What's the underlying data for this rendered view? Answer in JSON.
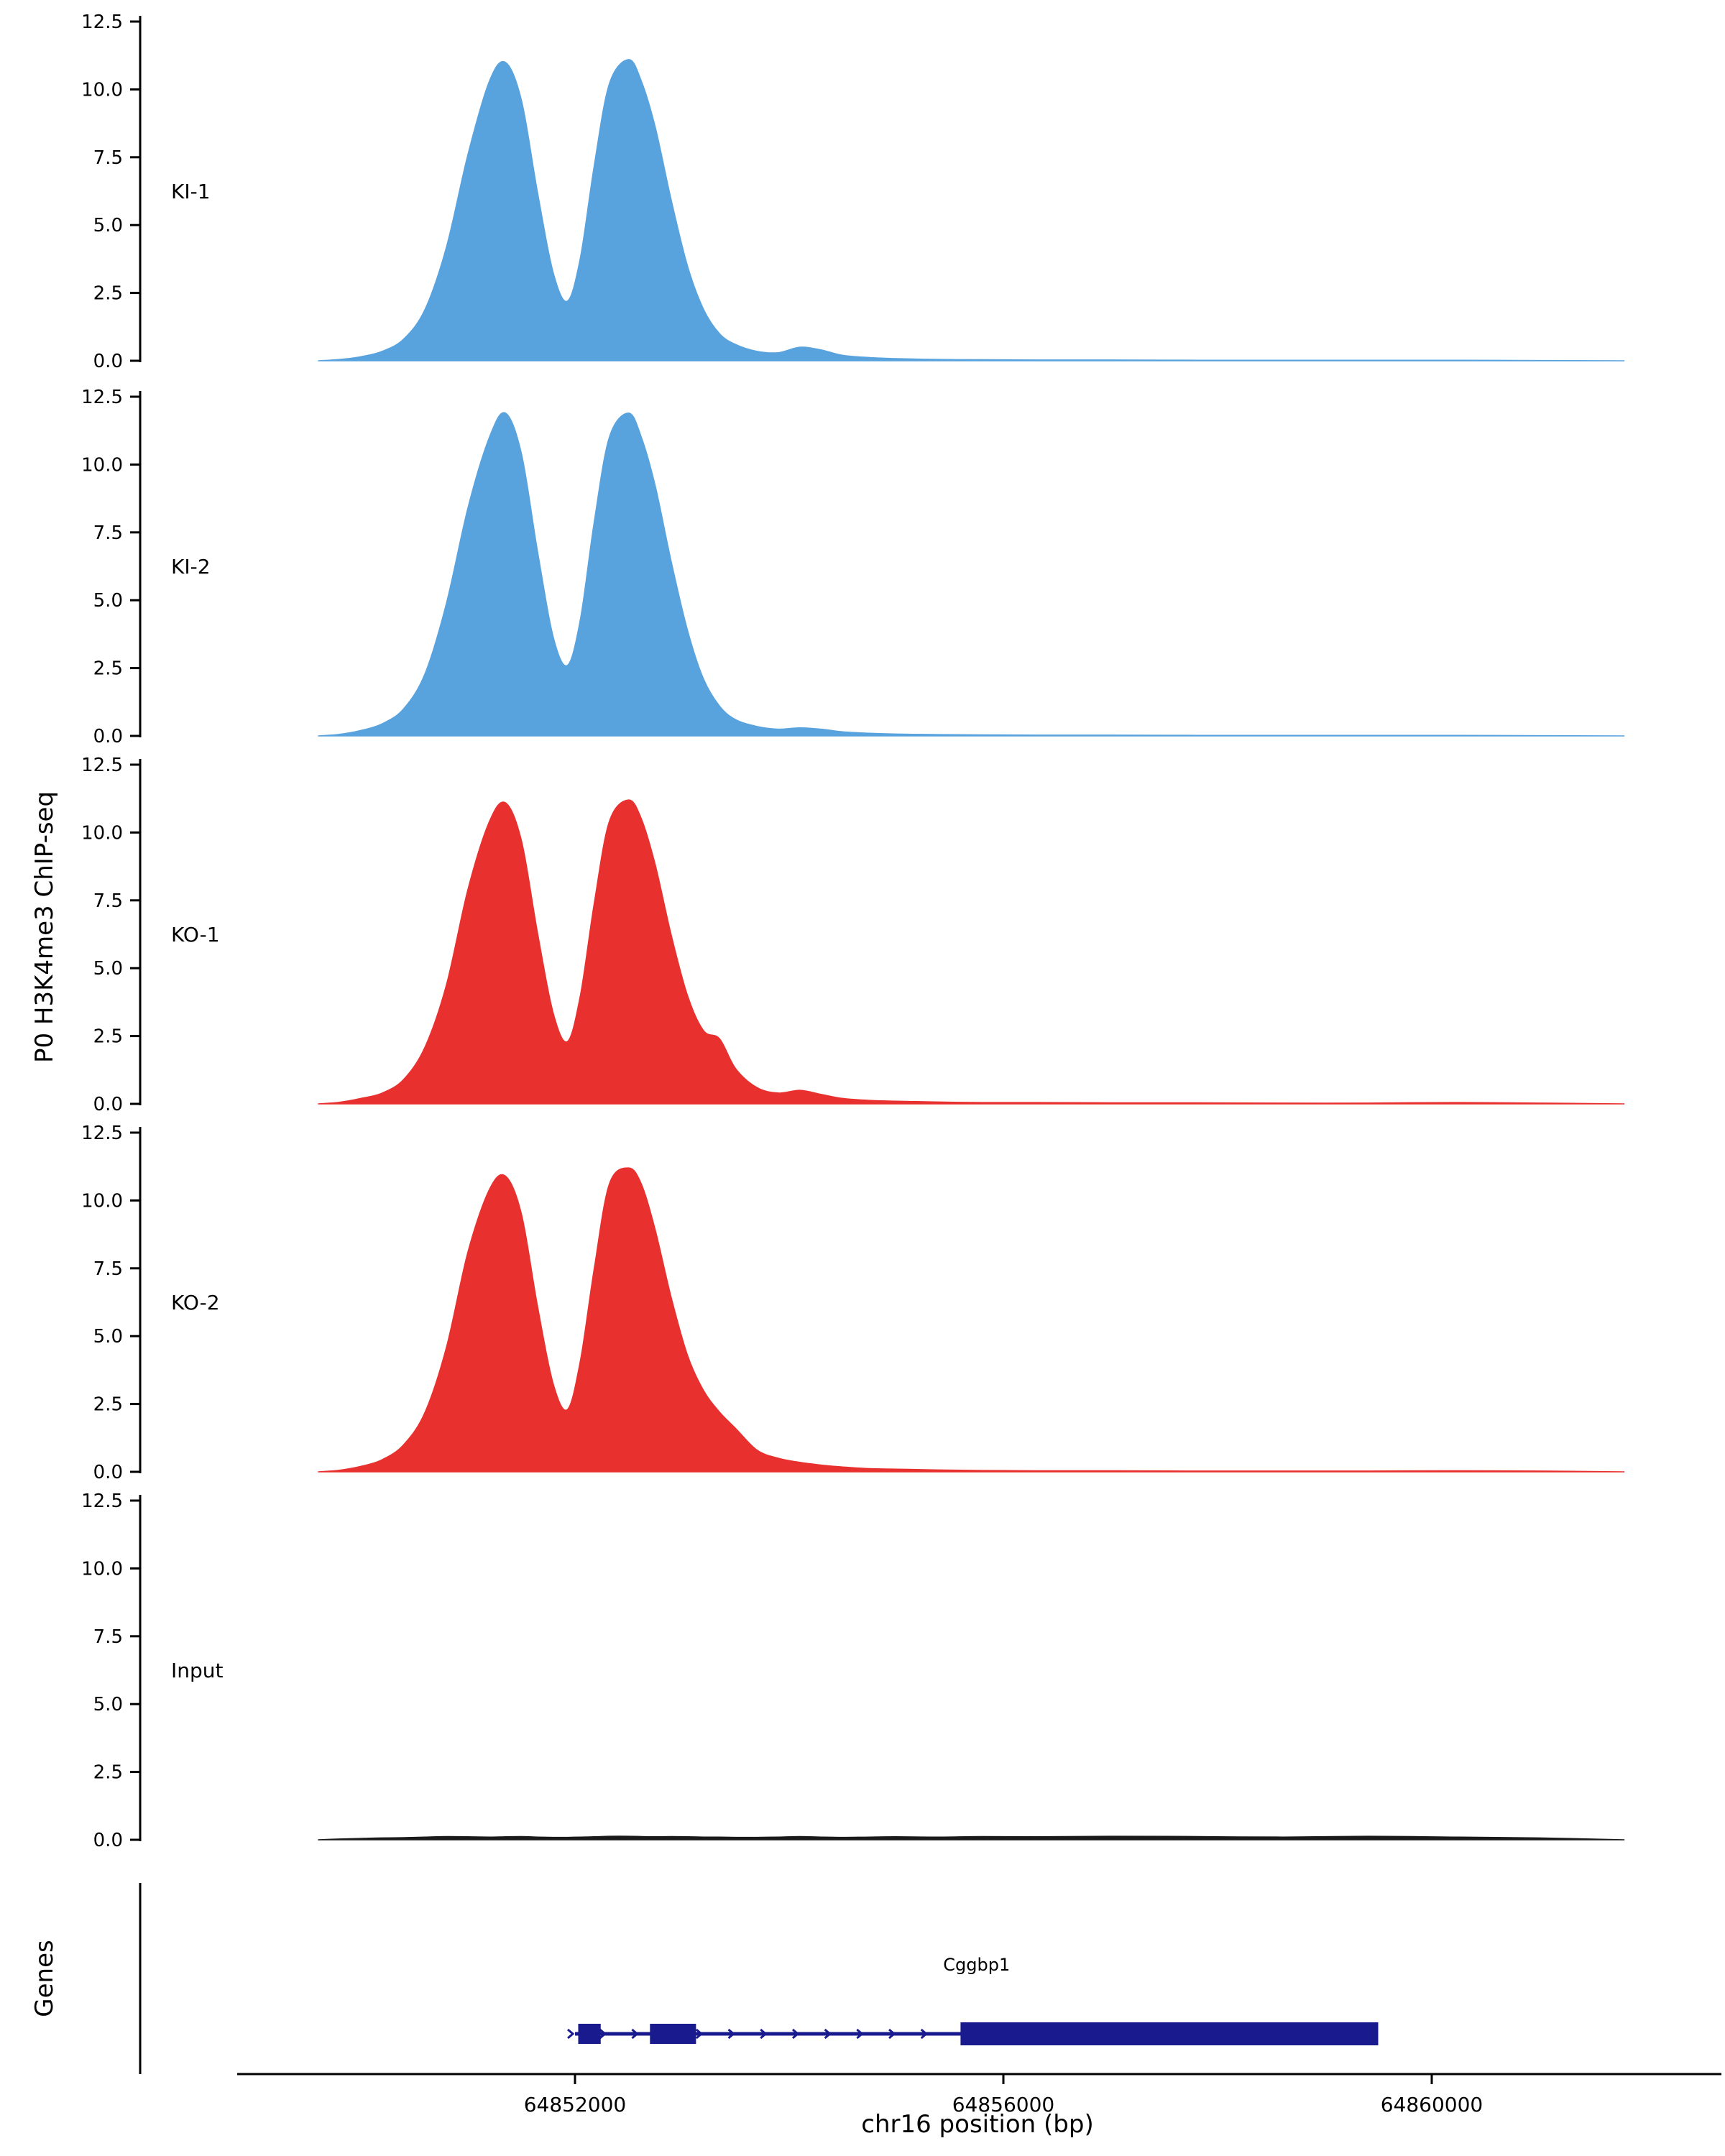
{
  "labels": {
    "y_axis_title": "P0 H3K4me3 ChIP-seq",
    "genes_title": "Genes",
    "x_axis_title": "chr16 position (bp)"
  },
  "chart_data": {
    "type": "area",
    "title": "",
    "xlabel": "chr16 position (bp)",
    "ylabel": "P0 H3K4me3 ChIP-seq",
    "x_range": [
      64848000,
      64862000
    ],
    "y_range": [
      0,
      12.5
    ],
    "y_ticks": [
      0.0,
      2.5,
      5.0,
      7.5,
      10.0,
      12.5
    ],
    "y_tick_labels": [
      "0.0",
      "2.5",
      "5.0",
      "7.5",
      "10.0",
      "12.5"
    ],
    "x_ticks": [
      64852000,
      64856000,
      64860000
    ],
    "x_tick_labels": [
      "64852000",
      "64856000",
      "64860000"
    ],
    "grid": false,
    "legend": "none",
    "x": [
      64849600,
      64849800,
      64850000,
      64850200,
      64850400,
      64850600,
      64850800,
      64851000,
      64851200,
      64851350,
      64851500,
      64851650,
      64851800,
      64851930,
      64852050,
      64852180,
      64852320,
      64852500,
      64852620,
      64852750,
      64852900,
      64853050,
      64853200,
      64853350,
      64853500,
      64853700,
      64853900,
      64854100,
      64854300,
      64854500,
      64854750,
      64855000,
      64855400,
      64855800,
      64856300,
      64857000,
      64857800,
      64858600,
      64859400,
      64860200,
      64861000,
      64861800
    ],
    "tracks": [
      {
        "name": "KI-1",
        "color": "#58a2de",
        "values": [
          0,
          0.05,
          0.15,
          0.35,
          0.8,
          1.9,
          4.2,
          7.6,
          10.3,
          11.0,
          9.6,
          6.2,
          3.2,
          2.2,
          3.8,
          7.2,
          10.2,
          11.1,
          10.3,
          8.6,
          5.9,
          3.5,
          1.9,
          1.0,
          0.6,
          0.35,
          0.3,
          0.5,
          0.4,
          0.2,
          0.12,
          0.08,
          0.05,
          0.04,
          0.03,
          0.03,
          0.02,
          0.02,
          0.02,
          0.02,
          0.01,
          0
        ]
      },
      {
        "name": "KI-2",
        "color": "#58a2de",
        "values": [
          0,
          0.06,
          0.2,
          0.45,
          1.0,
          2.3,
          4.9,
          8.4,
          11.0,
          11.9,
          10.4,
          6.8,
          3.6,
          2.6,
          4.3,
          7.9,
          11.0,
          11.9,
          11.0,
          9.2,
          6.4,
          3.9,
          2.1,
          1.1,
          0.6,
          0.35,
          0.25,
          0.3,
          0.25,
          0.15,
          0.1,
          0.07,
          0.05,
          0.04,
          0.03,
          0.03,
          0.02,
          0.02,
          0.02,
          0.02,
          0.01,
          0
        ]
      },
      {
        "name": "KO-1",
        "color": "#e8312f",
        "values": [
          0,
          0.06,
          0.2,
          0.4,
          0.9,
          2.1,
          4.4,
          7.9,
          10.4,
          11.1,
          9.7,
          6.3,
          3.3,
          2.3,
          4.0,
          7.4,
          10.4,
          11.2,
          10.5,
          8.8,
          6.2,
          4.0,
          2.7,
          2.4,
          1.3,
          0.6,
          0.4,
          0.5,
          0.35,
          0.2,
          0.13,
          0.1,
          0.07,
          0.05,
          0.05,
          0.04,
          0.04,
          0.03,
          0.03,
          0.05,
          0.03,
          0
        ]
      },
      {
        "name": "KO-2",
        "color": "#e8312f",
        "values": [
          0,
          0.06,
          0.2,
          0.45,
          1.0,
          2.2,
          4.6,
          8.1,
          10.4,
          10.9,
          9.5,
          6.1,
          3.2,
          2.3,
          4.1,
          7.5,
          10.6,
          11.2,
          10.6,
          8.9,
          6.4,
          4.3,
          3.0,
          2.2,
          1.6,
          0.8,
          0.5,
          0.35,
          0.25,
          0.18,
          0.12,
          0.1,
          0.07,
          0.05,
          0.04,
          0.04,
          0.03,
          0.03,
          0.03,
          0.04,
          0.03,
          0
        ]
      },
      {
        "name": "Input",
        "color": "#1a1a1a",
        "values": [
          0,
          0.03,
          0.05,
          0.07,
          0.08,
          0.1,
          0.12,
          0.11,
          0.1,
          0.11,
          0.12,
          0.1,
          0.09,
          0.09,
          0.1,
          0.11,
          0.13,
          0.13,
          0.12,
          0.11,
          0.12,
          0.11,
          0.1,
          0.1,
          0.09,
          0.09,
          0.1,
          0.12,
          0.1,
          0.09,
          0.1,
          0.11,
          0.1,
          0.12,
          0.11,
          0.13,
          0.12,
          0.1,
          0.13,
          0.1,
          0.07,
          0
        ]
      }
    ],
    "genes": {
      "gene": {
        "name": "Cggbp1",
        "strand": "+",
        "start": 64852000,
        "end": 64859500,
        "small_exons": [
          [
            64852030,
            64852240
          ],
          [
            64852700,
            64853130
          ]
        ],
        "large_exon": [
          64855600,
          64859500
        ],
        "color": "#1a1a8f"
      }
    }
  }
}
